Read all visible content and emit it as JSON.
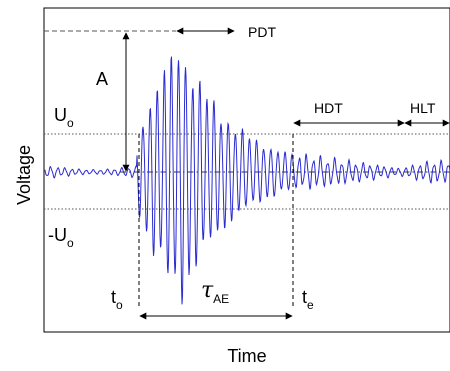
{
  "diagram": {
    "axis_x_label": "Time",
    "axis_y_label": "Voltage",
    "labels": {
      "amplitude": "A",
      "threshold_pos_main": "U",
      "threshold_pos_sub": "o",
      "threshold_neg_main": "-U",
      "threshold_neg_sub": "o",
      "t_start_main": "t",
      "t_start_sub": "o",
      "t_end_main": "t",
      "t_end_sub": "e",
      "duration_symbol": "τ",
      "duration_sub": "AE",
      "pdt": "PDT",
      "hdt": "HDT",
      "hlt": "HLT"
    },
    "colors": {
      "signal": "#2b2bd0",
      "axes": "#000000",
      "threshold": "#555555"
    }
  }
}
